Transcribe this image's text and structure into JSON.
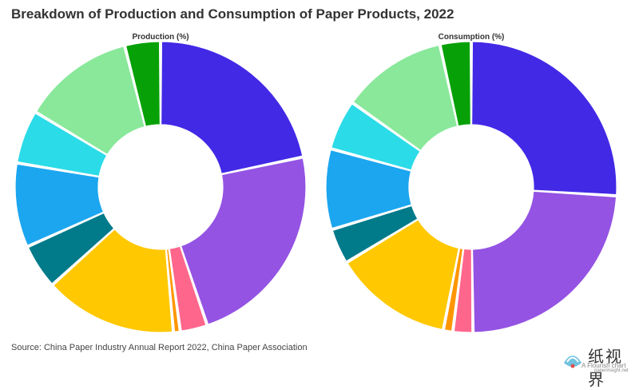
{
  "title": "Breakdown of Production and Consumption of Paper Products, 2022",
  "source": "Source: China Paper Industry Annual Report 2022, China Paper Association",
  "logo": {
    "cn_text": "纸视界",
    "sub_text": "A Flourish chart",
    "url": "paperinsight.net"
  },
  "colors": [
    "#4229e6",
    "#9453e3",
    "#ff668c",
    "#ff9600",
    "#ffc800",
    "#017a8a",
    "#1ba6ef",
    "#2bdbe8",
    "#89e89a",
    "#07a107"
  ],
  "chart_data": [
    {
      "type": "pie",
      "donut": true,
      "title": "Production (%)",
      "values": [
        23.0,
        24.5,
        3.2,
        0.8,
        15.6,
        5.3,
        9.9,
        6.3,
        13.2,
        4.2
      ]
    },
    {
      "type": "pie",
      "donut": true,
      "title": "Consumption (%)",
      "values": [
        27.0,
        24.8,
        2.3,
        1.1,
        13.8,
        4.1,
        9.3,
        5.8,
        12.2,
        3.6
      ]
    }
  ]
}
